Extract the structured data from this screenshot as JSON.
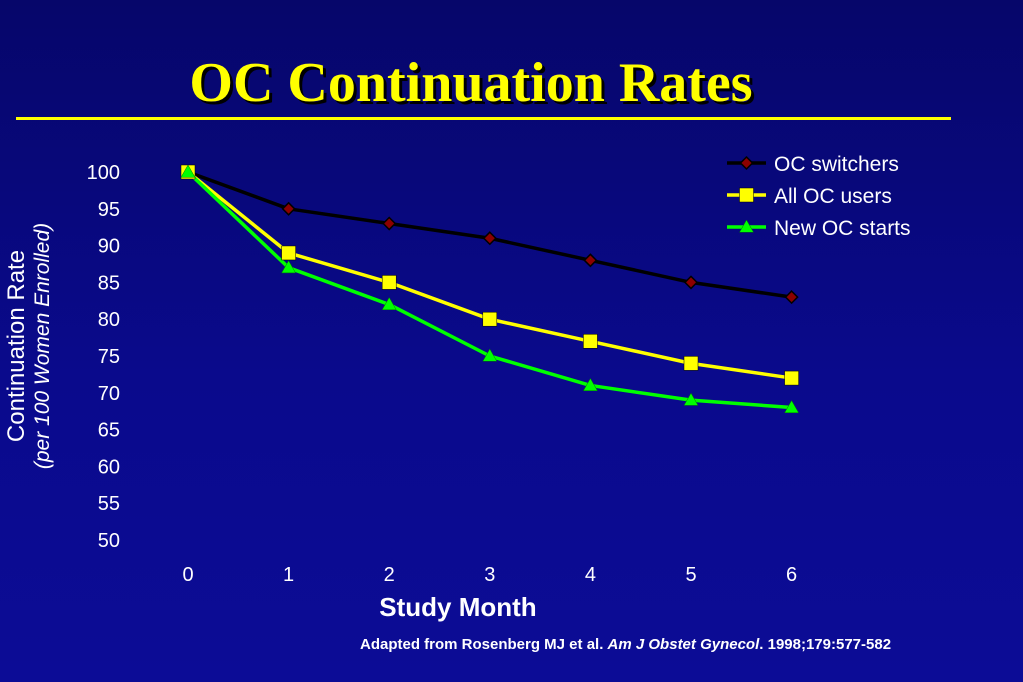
{
  "title": "OC Continuation Rates",
  "citation": {
    "prefix": "Adapted from Rosenberg  MJ  et al.  ",
    "journal": "Am J Obstet Gynecol",
    "suffix": ". 1998;179:577-582"
  },
  "colors": {
    "background": "#0a0a8c",
    "title": "#ffff00",
    "oc_switchers": "#000000",
    "oc_switchers_marker": "#8b0000",
    "all_oc_users": "#ffff00",
    "new_oc_starts": "#00ff00"
  },
  "chart_data": {
    "type": "line",
    "title": "OC Continuation Rates",
    "xlabel": "Study Month",
    "ylabel": "Continuation Rate",
    "ylabel_sub": "per 100 Women Enrolled",
    "x": [
      0,
      1,
      2,
      3,
      4,
      5,
      6
    ],
    "x_ticks": [
      "0",
      "1",
      "2",
      "3",
      "4",
      "5",
      "6"
    ],
    "y_ticks": [
      "50",
      "55",
      "60",
      "65",
      "70",
      "75",
      "80",
      "85",
      "90",
      "95",
      "100"
    ],
    "ylim": [
      50,
      100
    ],
    "grid": false,
    "legend_position": "top-right",
    "series": [
      {
        "name": "OC switchers",
        "marker": "diamond",
        "values": [
          100,
          95,
          93,
          91,
          88,
          85,
          83
        ]
      },
      {
        "name": "All OC users",
        "marker": "square",
        "values": [
          100,
          89,
          85,
          80,
          77,
          74,
          72
        ]
      },
      {
        "name": "New OC starts",
        "marker": "triangle",
        "values": [
          100,
          87,
          82,
          75,
          71,
          69,
          68
        ]
      }
    ]
  }
}
